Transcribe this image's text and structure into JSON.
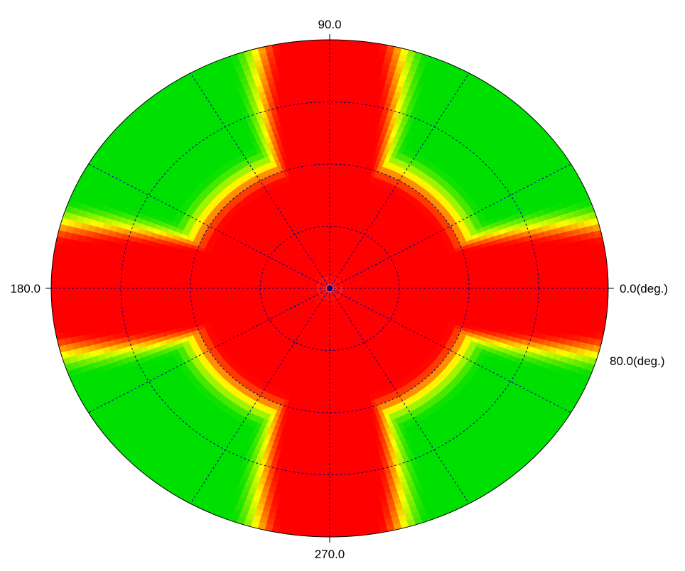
{
  "chart_data": {
    "type": "heatmap",
    "projection": "polar",
    "angle_labels": {
      "deg_0": "0.0(deg.)",
      "deg_90": "90.0",
      "deg_180": "180.0",
      "deg_270": "270.0"
    },
    "radial_max_label": "80.0(deg.)",
    "angle_spokes_deg": [
      0,
      30,
      60,
      90,
      120,
      150,
      180,
      210,
      240,
      270,
      300,
      330
    ],
    "radial_rings_deg": [
      20,
      40,
      60
    ],
    "radial_max_deg": 80,
    "grid": true,
    "colormap": {
      "low": "#00e000",
      "mid": "#ffff00",
      "high": "#ff0000"
    },
    "intensity_model": {
      "description_of_values": "relative level on 0 (green) to 1 (red) scale",
      "red_axes_deg": [
        0,
        90,
        180,
        270
      ],
      "center_level": 1.0,
      "edge_level_between_axes": 0.0
    }
  }
}
